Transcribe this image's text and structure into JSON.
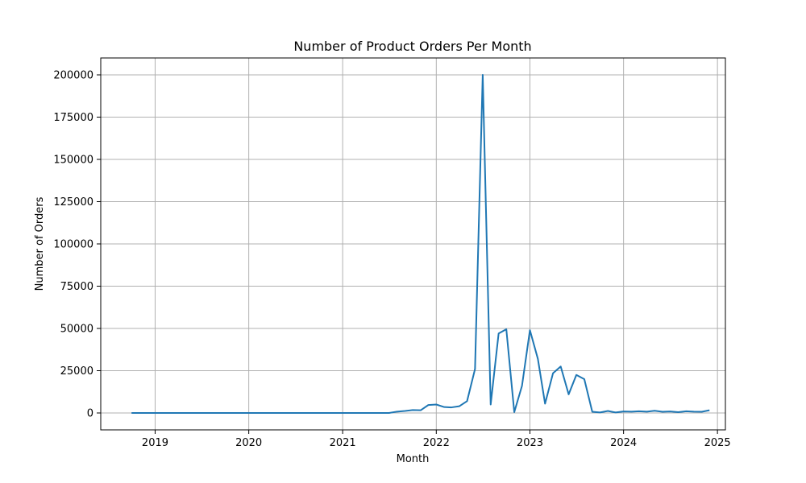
{
  "chart_data": {
    "type": "line",
    "title": "Number of Product Orders Per Month",
    "xlabel": "Month",
    "ylabel": "Number of Orders",
    "xlim": [
      "2018-06-03",
      "2025-02-01"
    ],
    "ylim": [
      -10000,
      210000
    ],
    "xticks": [
      {
        "date": "2019-01-01",
        "label": "2019"
      },
      {
        "date": "2020-01-01",
        "label": "2020"
      },
      {
        "date": "2021-01-01",
        "label": "2021"
      },
      {
        "date": "2022-01-01",
        "label": "2022"
      },
      {
        "date": "2023-01-01",
        "label": "2023"
      },
      {
        "date": "2024-01-01",
        "label": "2024"
      },
      {
        "date": "2025-01-01",
        "label": "2025"
      }
    ],
    "yticks": [
      0,
      25000,
      50000,
      75000,
      100000,
      125000,
      150000,
      175000,
      200000
    ],
    "grid": true,
    "series": [
      {
        "color": "#1f77b4",
        "points": [
          {
            "x": "2018-10-01",
            "y": 0
          },
          {
            "x": "2018-11-01",
            "y": 0
          },
          {
            "x": "2018-12-01",
            "y": 0
          },
          {
            "x": "2019-01-01",
            "y": 0
          },
          {
            "x": "2019-02-01",
            "y": 0
          },
          {
            "x": "2019-03-01",
            "y": 0
          },
          {
            "x": "2019-04-01",
            "y": 0
          },
          {
            "x": "2019-05-01",
            "y": 0
          },
          {
            "x": "2019-06-01",
            "y": 0
          },
          {
            "x": "2019-07-01",
            "y": 0
          },
          {
            "x": "2019-08-01",
            "y": 0
          },
          {
            "x": "2019-09-01",
            "y": 0
          },
          {
            "x": "2019-10-01",
            "y": 0
          },
          {
            "x": "2019-11-01",
            "y": 0
          },
          {
            "x": "2019-12-01",
            "y": 0
          },
          {
            "x": "2020-01-01",
            "y": 0
          },
          {
            "x": "2020-02-01",
            "y": 0
          },
          {
            "x": "2020-03-01",
            "y": 0
          },
          {
            "x": "2020-04-01",
            "y": 0
          },
          {
            "x": "2020-05-01",
            "y": 0
          },
          {
            "x": "2020-06-01",
            "y": 0
          },
          {
            "x": "2020-07-01",
            "y": 0
          },
          {
            "x": "2020-08-01",
            "y": 0
          },
          {
            "x": "2020-09-01",
            "y": 0
          },
          {
            "x": "2020-10-01",
            "y": 0
          },
          {
            "x": "2020-11-01",
            "y": 0
          },
          {
            "x": "2020-12-01",
            "y": 0
          },
          {
            "x": "2021-01-01",
            "y": 0
          },
          {
            "x": "2021-02-01",
            "y": 0
          },
          {
            "x": "2021-03-01",
            "y": 0
          },
          {
            "x": "2021-04-01",
            "y": 0
          },
          {
            "x": "2021-05-01",
            "y": 0
          },
          {
            "x": "2021-06-01",
            "y": 0
          },
          {
            "x": "2021-07-01",
            "y": 0
          },
          {
            "x": "2021-08-01",
            "y": 800
          },
          {
            "x": "2021-09-01",
            "y": 1200
          },
          {
            "x": "2021-10-01",
            "y": 1700
          },
          {
            "x": "2021-11-01",
            "y": 1600
          },
          {
            "x": "2021-12-01",
            "y": 4700
          },
          {
            "x": "2022-01-01",
            "y": 5000
          },
          {
            "x": "2022-02-01",
            "y": 3500
          },
          {
            "x": "2022-03-01",
            "y": 3300
          },
          {
            "x": "2022-04-01",
            "y": 4000
          },
          {
            "x": "2022-05-01",
            "y": 7000
          },
          {
            "x": "2022-06-01",
            "y": 26000
          },
          {
            "x": "2022-07-01",
            "y": 200000
          },
          {
            "x": "2022-08-01",
            "y": 5000
          },
          {
            "x": "2022-09-01",
            "y": 47000
          },
          {
            "x": "2022-10-01",
            "y": 49500
          },
          {
            "x": "2022-11-01",
            "y": 500
          },
          {
            "x": "2022-12-01",
            "y": 16000
          },
          {
            "x": "2023-01-01",
            "y": 49000
          },
          {
            "x": "2023-02-01",
            "y": 32000
          },
          {
            "x": "2023-03-01",
            "y": 5500
          },
          {
            "x": "2023-04-01",
            "y": 23500
          },
          {
            "x": "2023-05-01",
            "y": 27500
          },
          {
            "x": "2023-06-01",
            "y": 11000
          },
          {
            "x": "2023-07-01",
            "y": 22500
          },
          {
            "x": "2023-08-01",
            "y": 20000
          },
          {
            "x": "2023-09-01",
            "y": 700
          },
          {
            "x": "2023-10-01",
            "y": 300
          },
          {
            "x": "2023-11-01",
            "y": 1200
          },
          {
            "x": "2023-12-01",
            "y": 300
          },
          {
            "x": "2024-01-01",
            "y": 900
          },
          {
            "x": "2024-02-01",
            "y": 800
          },
          {
            "x": "2024-03-01",
            "y": 1000
          },
          {
            "x": "2024-04-01",
            "y": 800
          },
          {
            "x": "2024-05-01",
            "y": 1300
          },
          {
            "x": "2024-06-01",
            "y": 700
          },
          {
            "x": "2024-07-01",
            "y": 900
          },
          {
            "x": "2024-08-01",
            "y": 500
          },
          {
            "x": "2024-09-01",
            "y": 1000
          },
          {
            "x": "2024-10-01",
            "y": 800
          },
          {
            "x": "2024-11-01",
            "y": 700
          },
          {
            "x": "2024-12-01",
            "y": 1600
          }
        ]
      }
    ]
  }
}
